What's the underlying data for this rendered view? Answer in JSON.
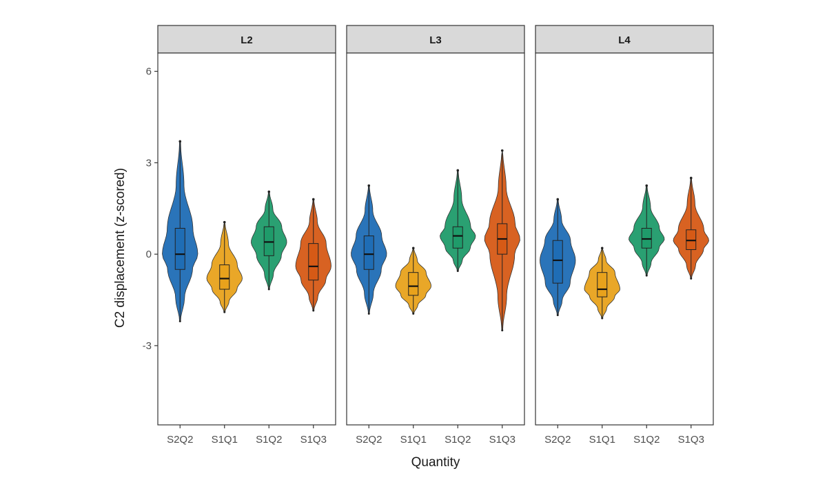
{
  "chart_data": {
    "type": "violin",
    "facet_variable": "",
    "panels": [
      "L2",
      "L3",
      "L4"
    ],
    "categories": [
      "S2Q2",
      "S1Q1",
      "S1Q2",
      "S1Q3"
    ],
    "xlabel": "Quantity",
    "ylabel": "C2 displacement (z-scored)",
    "ylim": [
      -5.6,
      6.6
    ],
    "yticks": [
      -3,
      0,
      3,
      6
    ],
    "ytick_labels": [
      "-3",
      "0",
      "3",
      "6"
    ],
    "grid": false,
    "legend": "none",
    "colors": {
      "S2Q2": "#1f6db5",
      "S1Q1": "#e8a21c",
      "S1Q2": "#1f9b6a",
      "S1Q3": "#d65a16"
    },
    "data": {
      "L2": [
        {
          "category": "S2Q2",
          "min": -2.2,
          "q1": -0.5,
          "median": 0.0,
          "q3": 0.85,
          "max": 3.7,
          "whisker_low": -2.2,
          "whisker_high": 3.7
        },
        {
          "category": "S1Q1",
          "min": -1.9,
          "q1": -1.15,
          "median": -0.8,
          "q3": -0.35,
          "max": 1.05,
          "whisker_low": -1.9,
          "whisker_high": 1.05
        },
        {
          "category": "S1Q2",
          "min": -1.15,
          "q1": -0.05,
          "median": 0.4,
          "q3": 0.9,
          "max": 2.05,
          "whisker_low": -1.15,
          "whisker_high": 2.05
        },
        {
          "category": "S1Q3",
          "min": -1.85,
          "q1": -0.85,
          "median": -0.4,
          "q3": 0.35,
          "max": 1.8,
          "whisker_low": -1.85,
          "whisker_high": 1.8
        }
      ],
      "L3": [
        {
          "category": "S2Q2",
          "min": -1.95,
          "q1": -0.5,
          "median": 0.0,
          "q3": 0.6,
          "max": 2.25,
          "whisker_low": -1.95,
          "whisker_high": 2.25
        },
        {
          "category": "S1Q1",
          "min": -1.95,
          "q1": -1.35,
          "median": -1.05,
          "q3": -0.6,
          "max": 0.2,
          "whisker_low": -1.95,
          "whisker_high": 0.2
        },
        {
          "category": "S1Q2",
          "min": -0.55,
          "q1": 0.2,
          "median": 0.6,
          "q3": 0.9,
          "max": 2.75,
          "whisker_low": -0.55,
          "whisker_high": 2.75
        },
        {
          "category": "S1Q3",
          "min": -2.5,
          "q1": 0.0,
          "median": 0.5,
          "q3": 1.0,
          "max": 3.4,
          "whisker_low": -2.5,
          "whisker_high": 3.4
        }
      ],
      "L4": [
        {
          "category": "S2Q2",
          "min": -2.0,
          "q1": -0.95,
          "median": -0.2,
          "q3": 0.45,
          "max": 1.8,
          "whisker_low": -2.0,
          "whisker_high": 1.8
        },
        {
          "category": "S1Q1",
          "min": -2.1,
          "q1": -1.4,
          "median": -1.15,
          "q3": -0.6,
          "max": 0.2,
          "whisker_low": -2.1,
          "whisker_high": 0.2
        },
        {
          "category": "S1Q2",
          "min": -0.7,
          "q1": 0.2,
          "median": 0.5,
          "q3": 0.85,
          "max": 2.25,
          "whisker_low": -0.7,
          "whisker_high": 2.25
        },
        {
          "category": "S1Q3",
          "min": -0.8,
          "q1": 0.15,
          "median": 0.45,
          "q3": 0.8,
          "max": 2.5,
          "whisker_low": -0.8,
          "whisker_high": 2.5
        }
      ]
    }
  }
}
